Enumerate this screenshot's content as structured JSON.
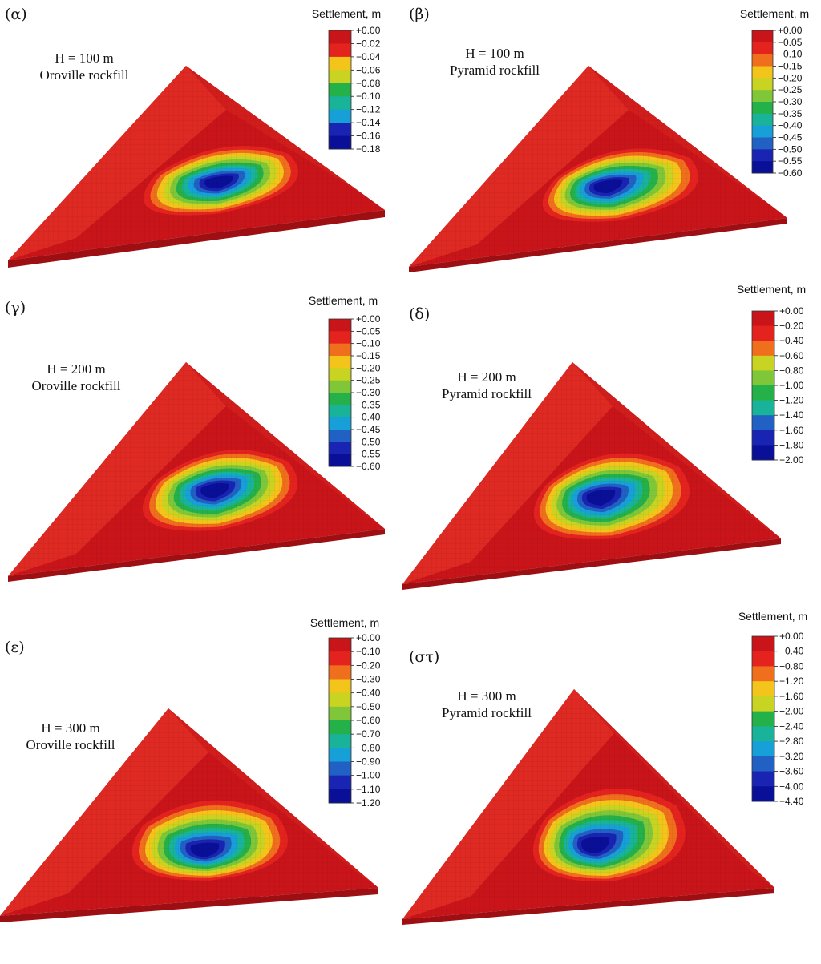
{
  "figure": {
    "colorbar_title": "Settlement, m",
    "palette": [
      "#c9141a",
      "#e4231f",
      "#f06f1c",
      "#f3c419",
      "#c8d322",
      "#7fc739",
      "#25b14a",
      "#19b39a",
      "#17a0d8",
      "#2161c3",
      "#1a24b3",
      "#0a0f98"
    ],
    "panels": [
      {
        "id": "a",
        "label": "(α)",
        "height": "H = 100 m",
        "material": "Oroville rockfill",
        "scale": [
          "+0.00",
          "−0.02",
          "−0.04",
          "−0.06",
          "−0.08",
          "−0.10",
          "−0.12",
          "−0.14",
          "−0.16",
          "−0.18"
        ]
      },
      {
        "id": "b",
        "label": "(β)",
        "height": "H = 100 m",
        "material": "Pyramid rockfill",
        "scale": [
          "+0.00",
          "−0.05",
          "−0.10",
          "−0.15",
          "−0.20",
          "−0.25",
          "−0.30",
          "−0.35",
          "−0.40",
          "−0.45",
          "−0.50",
          "−0.55",
          "−0.60"
        ]
      },
      {
        "id": "c",
        "label": "(γ)",
        "height": "H = 200 m",
        "material": "Oroville rockfill",
        "scale": [
          "+0.00",
          "−0.05",
          "−0.10",
          "−0.15",
          "−0.20",
          "−0.25",
          "−0.30",
          "−0.35",
          "−0.40",
          "−0.45",
          "−0.50",
          "−0.55",
          "−0.60"
        ]
      },
      {
        "id": "d",
        "label": "(δ)",
        "height": "H = 200 m",
        "material": "Pyramid rockfill",
        "scale": [
          "+0.00",
          "−0.20",
          "−0.40",
          "−0.60",
          "−0.80",
          "−1.00",
          "−1.20",
          "−1.40",
          "−1.60",
          "−1.80",
          "−2.00"
        ]
      },
      {
        "id": "e",
        "label": "(ε)",
        "height": "H = 300 m",
        "material": "Oroville rockfill",
        "scale": [
          "+0.00",
          "−0.10",
          "−0.20",
          "−0.30",
          "−0.40",
          "−0.50",
          "−0.60",
          "−0.70",
          "−0.80",
          "−0.90",
          "−1.00",
          "−1.10",
          "−1.20"
        ]
      },
      {
        "id": "f",
        "label": "(στ)",
        "height": "H = 300 m",
        "material": "Pyramid rockfill",
        "scale": [
          "+0.00",
          "−0.40",
          "−0.80",
          "−1.20",
          "−1.60",
          "−2.00",
          "−2.40",
          "−2.80",
          "−3.20",
          "−3.60",
          "−4.00",
          "−4.40"
        ]
      }
    ]
  }
}
